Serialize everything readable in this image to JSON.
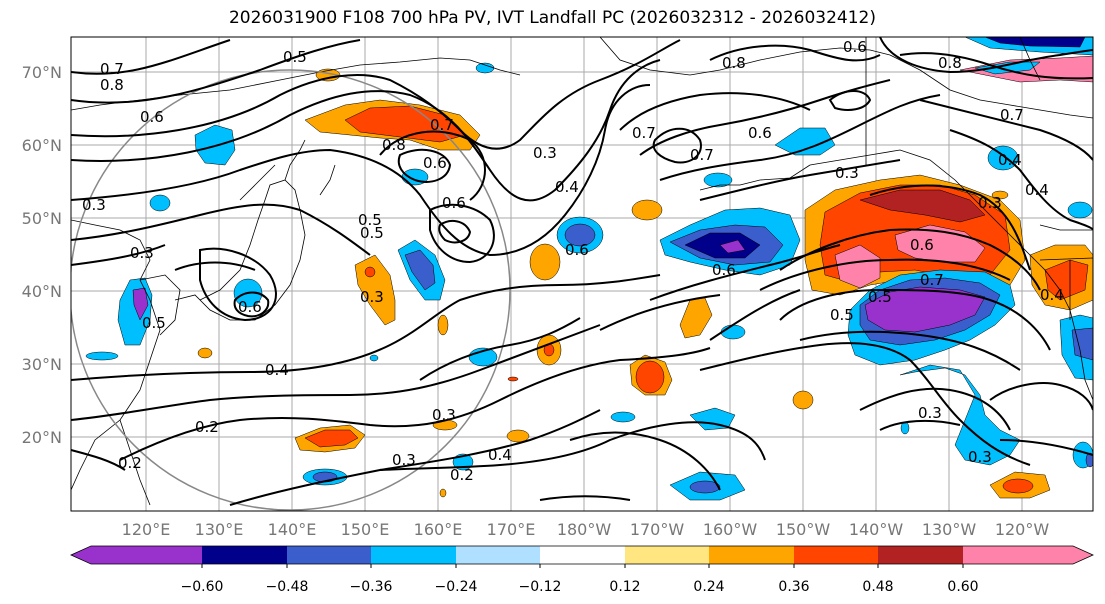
{
  "title": "2026031900 F108 700 hPa PV, IVT Landfall PC (2026032312 - 2026032412)",
  "lat_labels": [
    "70°N",
    "60°N",
    "50°N",
    "40°N",
    "30°N",
    "20°N"
  ],
  "lon_labels": [
    "120°E",
    "130°E",
    "140°E",
    "150°E",
    "160°E",
    "170°E",
    "180°W",
    "170°W",
    "160°W",
    "150°W",
    "140°W",
    "130°W",
    "120°W"
  ],
  "contour_labels": [
    "0.7",
    "0.8",
    "0.6",
    "0.5",
    "0.8",
    "0.7",
    "0.6",
    "0.6",
    "0.6",
    "0.3",
    "0.5",
    "0.7",
    "0.7",
    "0.3",
    "0.8",
    "0.4",
    "0.4",
    "0.6",
    "0.5",
    "0.6",
    "0.8",
    "0.3",
    "0.7",
    "0.6",
    "0.4",
    "0.3",
    "0.6",
    "0.6",
    "0.7",
    "0.5",
    "0.3",
    "0.5",
    "0.4",
    "0.3",
    "0.5",
    "0.3",
    "0.4",
    "0.2",
    "0.3",
    "0.3",
    "0.4",
    "0.2",
    "0.3",
    "0.2"
  ],
  "colorbar": {
    "ticks": [
      "−0.60",
      "−0.48",
      "−0.36",
      "−0.24",
      "−0.12",
      "0.12",
      "0.24",
      "0.36",
      "0.48",
      "0.60"
    ],
    "colors": [
      "#9932cc",
      "#00008b",
      "#3a5fcd",
      "#00bfff",
      "#b0e0ff",
      "#ffffff",
      "#ffe680",
      "#ffa500",
      "#ff4500",
      "#b22222",
      "#ff82ab"
    ]
  }
}
